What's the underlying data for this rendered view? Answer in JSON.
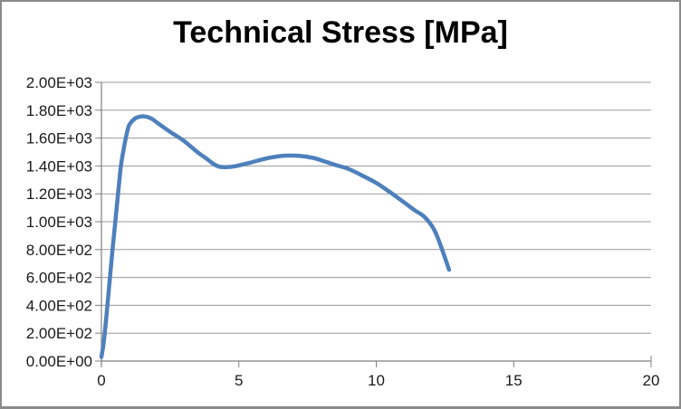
{
  "window": {
    "kind": "embedded-spreadsheet-chart",
    "background": "#ffffff",
    "frame_border_color": "#8a8a8a"
  },
  "header": {
    "title": "Technical Stress [MPa]"
  },
  "colors": {
    "series_line": "#4e80bc",
    "gridline": "#9a9a9a",
    "axis_line": "#808080",
    "label_text": "#1a1a1a",
    "title_text": "#000000"
  },
  "chart_data": {
    "type": "line",
    "title": "Technical Stress [MPa]",
    "xlabel": "",
    "ylabel": "",
    "xlim": [
      0,
      20
    ],
    "ylim": [
      0,
      2000
    ],
    "grid": "horizontal-major-only",
    "legend_position": "none",
    "x_ticks": [
      {
        "value": 0,
        "label": "0"
      },
      {
        "value": 5,
        "label": "5"
      },
      {
        "value": 10,
        "label": "10"
      },
      {
        "value": 15,
        "label": "15"
      },
      {
        "value": 20,
        "label": "20"
      }
    ],
    "y_ticks": [
      {
        "value": 0,
        "label": "0.00E+00"
      },
      {
        "value": 200,
        "label": "2.00E+02"
      },
      {
        "value": 400,
        "label": "4.00E+02"
      },
      {
        "value": 600,
        "label": "6.00E+02"
      },
      {
        "value": 800,
        "label": "8.00E+02"
      },
      {
        "value": 1000,
        "label": "1.00E+03"
      },
      {
        "value": 1200,
        "label": "1.20E+03"
      },
      {
        "value": 1400,
        "label": "1.40E+03"
      },
      {
        "value": 1600,
        "label": "1.60E+03"
      },
      {
        "value": 1800,
        "label": "1.80E+03"
      },
      {
        "value": 2000,
        "label": "2.00E+03"
      }
    ],
    "series": [
      {
        "name": "Technical Stress",
        "color": "#4e80bc",
        "stroke_width": 4.5,
        "points": [
          [
            0,
            30
          ],
          [
            0.1,
            160
          ],
          [
            0.25,
            470
          ],
          [
            0.4,
            790
          ],
          [
            0.55,
            1090
          ],
          [
            0.7,
            1385
          ],
          [
            0.8,
            1510
          ],
          [
            0.9,
            1612
          ],
          [
            1.0,
            1688
          ],
          [
            1.15,
            1728
          ],
          [
            1.3,
            1748
          ],
          [
            1.55,
            1756
          ],
          [
            1.8,
            1742
          ],
          [
            2.1,
            1700
          ],
          [
            2.5,
            1645
          ],
          [
            3.0,
            1580
          ],
          [
            3.5,
            1498
          ],
          [
            3.8,
            1456
          ],
          [
            4.1,
            1412
          ],
          [
            4.35,
            1393
          ],
          [
            4.8,
            1396
          ],
          [
            5.3,
            1418
          ],
          [
            5.8,
            1444
          ],
          [
            6.2,
            1462
          ],
          [
            6.7,
            1474
          ],
          [
            7.2,
            1472
          ],
          [
            7.7,
            1458
          ],
          [
            8.1,
            1434
          ],
          [
            8.5,
            1408
          ],
          [
            9.0,
            1378
          ],
          [
            9.5,
            1330
          ],
          [
            10.0,
            1278
          ],
          [
            10.5,
            1212
          ],
          [
            11.0,
            1140
          ],
          [
            11.4,
            1082
          ],
          [
            11.75,
            1035
          ],
          [
            12.1,
            945
          ],
          [
            12.35,
            825
          ],
          [
            12.65,
            655
          ]
        ]
      }
    ]
  }
}
